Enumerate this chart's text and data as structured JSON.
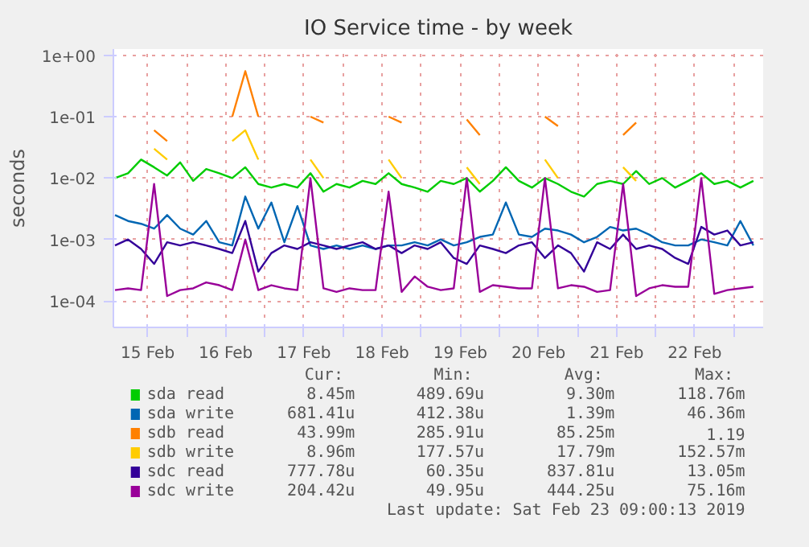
{
  "chart_data": {
    "type": "line",
    "title": "IO Service time - by week",
    "ylabel": "seconds",
    "log": "y",
    "grid": true,
    "legend": "bottom",
    "x": [
      "2019-02-15T02:00",
      "2019-02-15T06:00",
      "2019-02-15T10:00",
      "2019-02-15T14:00",
      "2019-02-15T18:00",
      "2019-02-15T22:00",
      "2019-02-16T02:00",
      "2019-02-16T06:00",
      "2019-02-16T10:00",
      "2019-02-16T14:00",
      "2019-02-16T18:00",
      "2019-02-16T22:00",
      "2019-02-17T02:00",
      "2019-02-17T06:00",
      "2019-02-17T10:00",
      "2019-02-17T14:00",
      "2019-02-17T18:00",
      "2019-02-17T22:00",
      "2019-02-18T02:00",
      "2019-02-18T06:00",
      "2019-02-18T10:00",
      "2019-02-18T14:00",
      "2019-02-18T18:00",
      "2019-02-18T22:00",
      "2019-02-19T02:00",
      "2019-02-19T06:00",
      "2019-02-19T10:00",
      "2019-02-19T14:00",
      "2019-02-19T18:00",
      "2019-02-19T22:00",
      "2019-02-20T02:00",
      "2019-02-20T06:00",
      "2019-02-20T10:00",
      "2019-02-20T14:00",
      "2019-02-20T18:00",
      "2019-02-20T22:00",
      "2019-02-21T02:00",
      "2019-02-21T06:00",
      "2019-02-21T10:00",
      "2019-02-21T14:00",
      "2019-02-21T18:00",
      "2019-02-21T22:00",
      "2019-02-22T02:00",
      "2019-02-22T06:00",
      "2019-02-22T10:00",
      "2019-02-22T14:00",
      "2019-02-22T18:00",
      "2019-02-22T22:00",
      "2019-02-23T02:00",
      "2019-02-23T06:00"
    ],
    "xlim": [
      "2019-02-15T01:30",
      "2019-02-23T09:00"
    ],
    "xticks": [
      {
        "value": "2019-02-15T12:00",
        "label": "15 Feb"
      },
      {
        "value": "2019-02-16T00:00",
        "label": null
      },
      {
        "value": "2019-02-16T12:00",
        "label": "16 Feb"
      },
      {
        "value": "2019-02-17T00:00",
        "label": null
      },
      {
        "value": "2019-02-17T12:00",
        "label": "17 Feb"
      },
      {
        "value": "2019-02-18T00:00",
        "label": null
      },
      {
        "value": "2019-02-18T12:00",
        "label": "18 Feb"
      },
      {
        "value": "2019-02-19T00:00",
        "label": null
      },
      {
        "value": "2019-02-19T12:00",
        "label": "19 Feb"
      },
      {
        "value": "2019-02-20T00:00",
        "label": null
      },
      {
        "value": "2019-02-20T12:00",
        "label": "20 Feb"
      },
      {
        "value": "2019-02-21T00:00",
        "label": null
      },
      {
        "value": "2019-02-21T12:00",
        "label": "21 Feb"
      },
      {
        "value": "2019-02-22T00:00",
        "label": null
      },
      {
        "value": "2019-02-22T12:00",
        "label": "22 Feb"
      },
      {
        "value": "2019-02-23T00:00",
        "label": null
      }
    ],
    "ylim": [
      3.7e-05,
      1.26
    ],
    "yticks": [
      {
        "value": 0.0001,
        "label": "1e-04"
      },
      {
        "value": 0.001,
        "label": "1e-03"
      },
      {
        "value": 0.01,
        "label": "1e-02"
      },
      {
        "value": 0.1,
        "label": "1e-01"
      },
      {
        "value": 1,
        "label": "1e+00"
      }
    ],
    "series": [
      {
        "name": "sda read",
        "color": "#00cc00",
        "values": [
          0.01,
          0.012,
          0.02,
          0.015,
          0.011,
          0.018,
          0.009,
          0.014,
          0.012,
          0.01,
          0.015,
          0.008,
          0.007,
          0.008,
          0.007,
          0.012,
          0.006,
          0.008,
          0.007,
          0.009,
          0.008,
          0.012,
          0.008,
          0.007,
          0.006,
          0.009,
          0.008,
          0.01,
          0.006,
          0.009,
          0.015,
          0.009,
          0.007,
          0.01,
          0.008,
          0.006,
          0.005,
          0.008,
          0.009,
          0.008,
          0.013,
          0.008,
          0.01,
          0.007,
          0.009,
          0.012,
          0.008,
          0.009,
          0.007,
          0.009
        ]
      },
      {
        "name": "sda write",
        "color": "#0066b3",
        "values": [
          0.0025,
          0.002,
          0.0018,
          0.0015,
          0.0025,
          0.0015,
          0.0012,
          0.002,
          0.0009,
          0.0008,
          0.005,
          0.0015,
          0.004,
          0.0009,
          0.0035,
          0.0008,
          0.0007,
          0.0008,
          0.0007,
          0.0008,
          0.0007,
          0.0008,
          0.0008,
          0.0009,
          0.0008,
          0.001,
          0.0008,
          0.0009,
          0.0011,
          0.0012,
          0.004,
          0.0012,
          0.0011,
          0.0015,
          0.0014,
          0.0012,
          0.0009,
          0.0011,
          0.0016,
          0.0014,
          0.0015,
          0.0012,
          0.0009,
          0.0008,
          0.0008,
          0.001,
          0.0009,
          0.0008,
          0.002,
          0.0008
        ]
      },
      {
        "name": "sdb read",
        "color": "#ff8000",
        "values": [
          null,
          null,
          null,
          0.06,
          0.04,
          null,
          null,
          null,
          null,
          0.1,
          0.55,
          0.1,
          null,
          null,
          null,
          0.1,
          0.08,
          null,
          null,
          null,
          null,
          0.1,
          0.08,
          null,
          null,
          null,
          null,
          0.09,
          0.05,
          null,
          null,
          null,
          null,
          0.1,
          0.07,
          null,
          null,
          null,
          null,
          0.05,
          0.08,
          null,
          null,
          null,
          null,
          null,
          null,
          null,
          null,
          null
        ]
      },
      {
        "name": "sdb write",
        "color": "#ffcc00",
        "values": [
          null,
          null,
          null,
          0.03,
          0.02,
          null,
          null,
          null,
          null,
          0.04,
          0.06,
          0.02,
          null,
          null,
          null,
          0.02,
          0.01,
          null,
          null,
          null,
          null,
          0.02,
          0.01,
          null,
          null,
          null,
          null,
          0.015,
          0.008,
          null,
          null,
          null,
          null,
          0.02,
          0.01,
          null,
          null,
          null,
          null,
          0.015,
          0.009,
          null,
          null,
          null,
          null,
          null,
          null,
          null,
          null,
          null
        ]
      },
      {
        "name": "sdc read",
        "color": "#330099",
        "values": [
          0.0008,
          0.001,
          0.0007,
          0.0004,
          0.0009,
          0.0008,
          0.0009,
          0.0008,
          0.0007,
          0.0006,
          0.002,
          0.0003,
          0.0006,
          0.0008,
          0.0007,
          0.0009,
          0.0008,
          0.0007,
          0.0008,
          0.0009,
          0.0007,
          0.0008,
          0.0006,
          0.0008,
          0.0007,
          0.0009,
          0.0005,
          0.0004,
          0.0008,
          0.0007,
          0.0006,
          0.0008,
          0.0009,
          0.0005,
          0.0008,
          0.0006,
          0.0003,
          0.0009,
          0.0007,
          0.0012,
          0.0007,
          0.0008,
          0.0007,
          0.0005,
          0.0004,
          0.0016,
          0.0012,
          0.0014,
          0.0008,
          0.0009
        ]
      },
      {
        "name": "sdc write",
        "color": "#990099",
        "values": [
          0.00015,
          0.00016,
          0.00015,
          0.008,
          0.00012,
          0.00015,
          0.00016,
          0.0002,
          0.00018,
          0.00015,
          0.001,
          0.00015,
          0.00018,
          0.00016,
          0.00015,
          0.01,
          0.00016,
          0.00014,
          0.00016,
          0.00015,
          0.00015,
          0.006,
          0.00014,
          0.00025,
          0.00017,
          0.00015,
          0.00016,
          0.01,
          0.00014,
          0.00018,
          0.00017,
          0.00016,
          0.00016,
          0.01,
          0.00016,
          0.00018,
          0.00017,
          0.00014,
          0.00015,
          0.008,
          0.00012,
          0.00016,
          0.00018,
          0.00017,
          0.00017,
          0.01,
          0.00013,
          0.00015,
          0.00016,
          0.00017
        ]
      }
    ],
    "annotations": [
      "Cur:",
      "Min:",
      "Avg:",
      "Max:",
      "8.45m",
      "489.69u",
      "9.30m",
      "118.76m",
      "681.41u",
      "412.38u",
      "1.39m",
      "46.36m",
      "43.99m",
      "285.91u",
      "85.25m",
      "1.19",
      "8.96m",
      "177.57u",
      "17.79m",
      "152.57m",
      "777.78u",
      "60.35u",
      "837.81u",
      "13.05m",
      "204.42u",
      "49.95u",
      "444.25u",
      "75.16m",
      "Last update: Sat Feb 23 09:00:13 2019"
    ]
  }
}
